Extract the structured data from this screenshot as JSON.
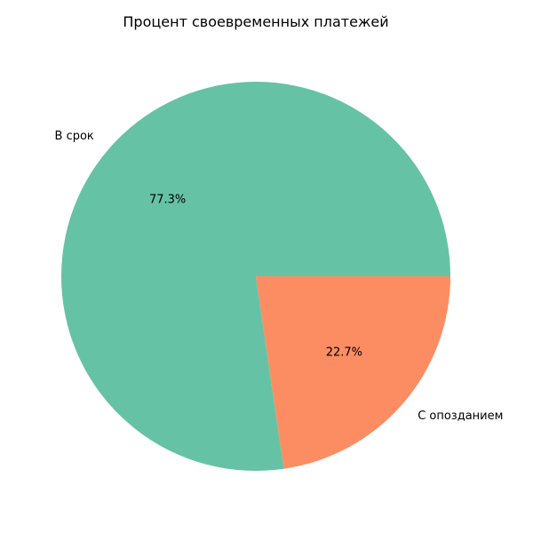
{
  "chart_data": {
    "type": "pie",
    "title": "Процент своевременных платежей",
    "slices": [
      {
        "label": "В срок",
        "value": 77.3,
        "display": "77.3%",
        "color": "#66c2a5"
      },
      {
        "label": "С опозданием",
        "value": 22.7,
        "display": "22.7%",
        "color": "#fc8d62"
      }
    ],
    "start_angle_deg": 0,
    "direction": "counterclockwise",
    "legend": "none"
  }
}
